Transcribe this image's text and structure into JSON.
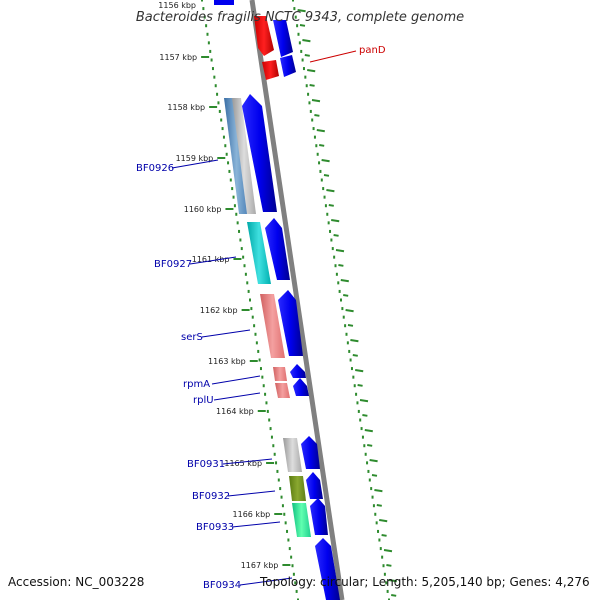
{
  "title": "Bacteroides fragilis NCTC 9343, complete genome",
  "accession": "Accession: NC_003228",
  "summary": "Topology: circular; Length: 5,205,140 bp; Genes: 4,276",
  "top_partial_tick": "1156 kbp",
  "colors": {
    "backbone": "#808080",
    "cds_forward": "#0000ee",
    "dotted_track": "#2e8b2e",
    "label_blue": "#0000aa",
    "label_red": "#cc0000"
  },
  "ticks": [
    {
      "label": "1157 kbp"
    },
    {
      "label": "1158 kbp"
    },
    {
      "label": "1159 kbp"
    },
    {
      "label": "1160 kbp"
    },
    {
      "label": "1161 kbp"
    },
    {
      "label": "1162 kbp"
    },
    {
      "label": "1163 kbp"
    },
    {
      "label": "1164 kbp"
    },
    {
      "label": "1165 kbp"
    },
    {
      "label": "1166 kbp"
    },
    {
      "label": "1167 kbp"
    }
  ],
  "genes": [
    {
      "label": "panD",
      "color": "red"
    },
    {
      "label": "BF0926",
      "color": "blue"
    },
    {
      "label": "BF0927",
      "color": "blue"
    },
    {
      "label": "serS",
      "color": "blue"
    },
    {
      "label": "rpmA",
      "color": "blue"
    },
    {
      "label": "rplU",
      "color": "blue"
    },
    {
      "label": "BF0931",
      "color": "blue"
    },
    {
      "label": "BF0932",
      "color": "blue"
    },
    {
      "label": "BF0933",
      "color": "blue"
    },
    {
      "label": "BF0934",
      "color": "blue"
    }
  ]
}
